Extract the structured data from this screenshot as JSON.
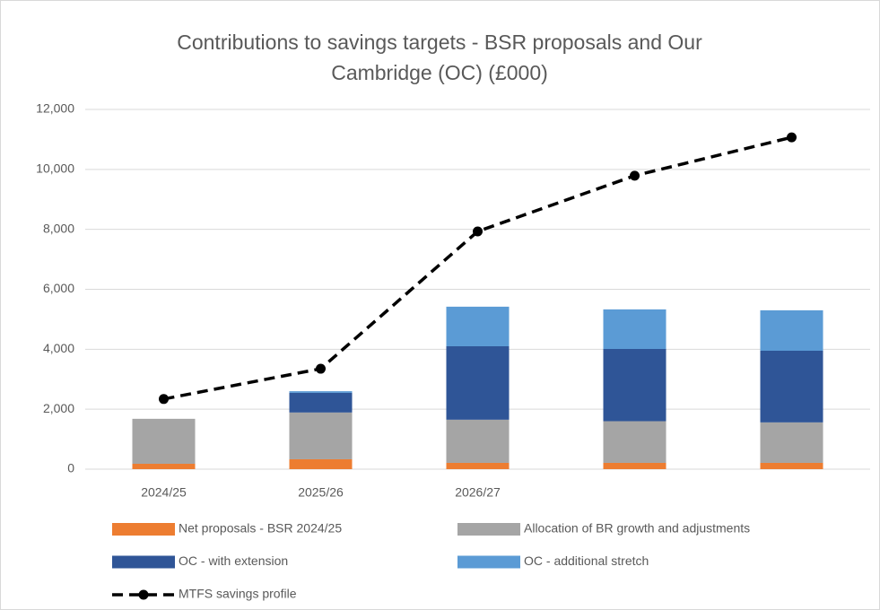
{
  "chart_data": {
    "type": "bar",
    "stacked": true,
    "title": "Contributions to savings targets - BSR proposals and Our Cambridge (OC) (£000)",
    "categories": [
      "2024/25",
      "2025/26",
      "2026/27",
      null,
      null
    ],
    "series": [
      {
        "name": "Net proposals - BSR 2024/25",
        "color": "#ed7d31",
        "values": [
          180,
          330,
          210,
          210,
          210
        ]
      },
      {
        "name": "Allocation of BR growth and adjustments",
        "color": "#a5a5a5",
        "values": [
          1500,
          1560,
          1440,
          1390,
          1350
        ]
      },
      {
        "name": "OC - with extension",
        "color": "#2f5597",
        "values": [
          0,
          655,
          2450,
          2410,
          2390
        ]
      },
      {
        "name": "OC - additional stretch",
        "color": "#5b9bd5",
        "values": [
          0,
          55,
          1320,
          1320,
          1350
        ]
      },
      {
        "name": "MTFS savings profile",
        "color": "#000000",
        "type": "line",
        "values": [
          2340,
          3350,
          7930,
          9790,
          11070
        ]
      }
    ],
    "ylim": [
      0,
      12000
    ],
    "yticks": [
      0,
      {
        "value": 2000,
        "label": "2,000"
      },
      {
        "value": 4000,
        "label": "4,000"
      },
      {
        "value": 6000,
        "label": "6,000"
      },
      {
        "value": 8000,
        "label": "8,000"
      },
      {
        "value": 10000,
        "label": "10,000"
      },
      {
        "value": 12000,
        "label": "12,000"
      }
    ],
    "grid": true,
    "legend": "bottom"
  }
}
